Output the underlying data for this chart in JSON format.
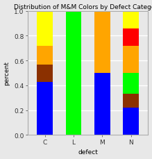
{
  "title": "Distribution of M&M Colors by Defect Category",
  "xlabel": "defect",
  "ylabel": "percent",
  "categories": [
    "C",
    "L",
    "M",
    "N"
  ],
  "color_order": [
    "blue",
    "brown",
    "green",
    "orange",
    "red",
    "yellow"
  ],
  "color_map": {
    "blue": "#0000FF",
    "brown": "#8B3000",
    "green": "#00FF00",
    "orange": "#FFA500",
    "red": "#FF0000",
    "yellow": "#FFFF00"
  },
  "segments": {
    "blue": [
      0.43,
      0.0,
      0.5,
      0.22
    ],
    "brown": [
      0.14,
      0.0,
      0.0,
      0.11
    ],
    "green": [
      0.0,
      1.0,
      0.0,
      0.17
    ],
    "orange": [
      0.15,
      0.0,
      0.5,
      0.22
    ],
    "red": [
      0.0,
      0.0,
      0.0,
      0.14
    ],
    "yellow": [
      0.28,
      0.0,
      0.0,
      0.14
    ]
  },
  "ylim": [
    0.0,
    1.0
  ],
  "yticks": [
    0.0,
    0.2,
    0.4,
    0.6,
    0.8,
    1.0
  ],
  "bar_width": 0.55,
  "background_color": "#E8E8E8",
  "plot_bg_color": "#E8E8E8",
  "title_fontsize": 6.5,
  "axis_fontsize": 6.5,
  "tick_fontsize": 6.5
}
